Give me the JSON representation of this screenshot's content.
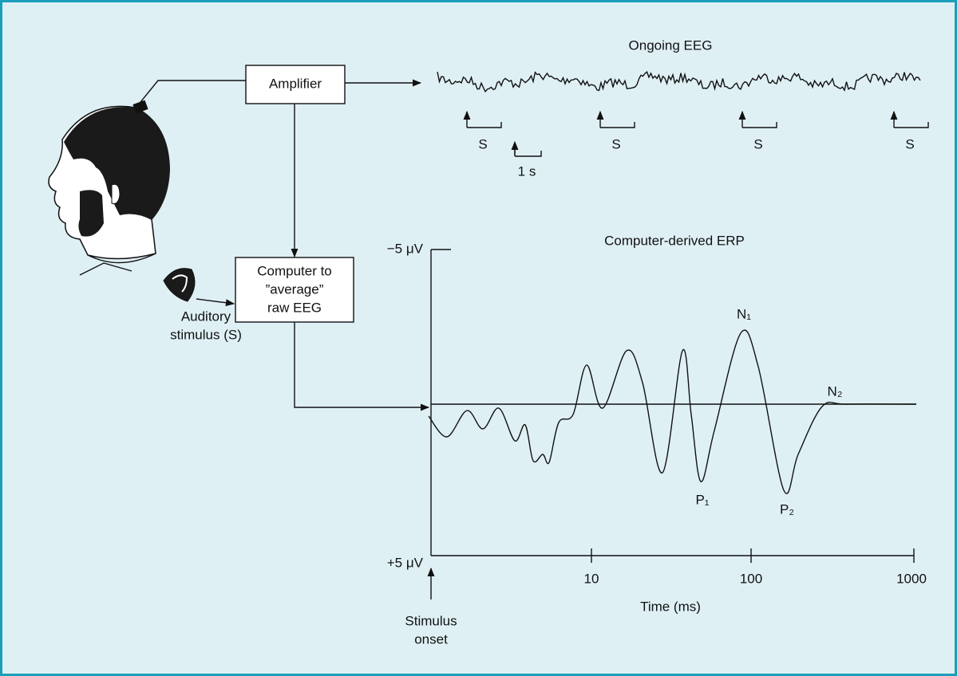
{
  "eeg": {
    "title": "Ongoing EEG",
    "stimulus_marks": [
      "S",
      "S",
      "S",
      "S"
    ],
    "scale": "1 s"
  },
  "amplifier": "Amplifier",
  "computer": {
    "lines": [
      "Computer to",
      "”average”",
      "raw EEG"
    ]
  },
  "stimulus": {
    "lines": [
      "Auditory",
      "stimulus (S)"
    ]
  },
  "erp": {
    "title": "Computer-derived ERP",
    "y_top": "−5 μV",
    "y_bottom": "+5 μV",
    "peaks": {
      "n1": "N₁",
      "p1": "P₁",
      "p2": "P₂",
      "n2": "N₂"
    },
    "x_ticks": [
      "10",
      "100",
      "1000"
    ],
    "x_label": "Time (ms)",
    "onset": [
      "Stimulus",
      "onset"
    ]
  }
}
